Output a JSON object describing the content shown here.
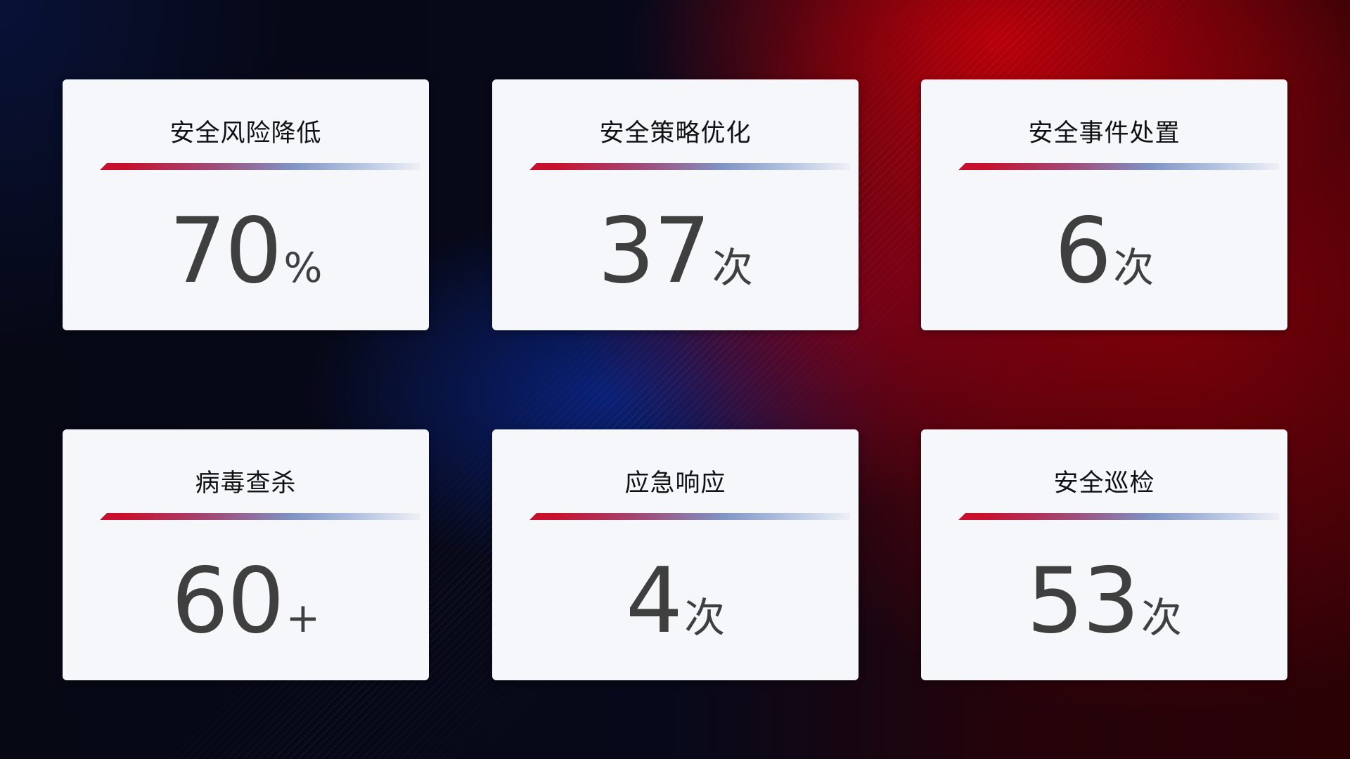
{
  "cards": [
    {
      "title": "安全风险降低",
      "value": "70",
      "unit": "%"
    },
    {
      "title": "安全策略优化",
      "value": "37",
      "unit": "次"
    },
    {
      "title": "安全事件处置",
      "value": "6",
      "unit": "次"
    },
    {
      "title": "病毒查杀",
      "value": "60",
      "unit": "+"
    },
    {
      "title": "应急响应",
      "value": "4",
      "unit": "次"
    },
    {
      "title": "安全巡检",
      "value": "53",
      "unit": "次"
    }
  ],
  "colors": {
    "accent_red": "#c8102e",
    "accent_blue": "#7f93c4",
    "card_bg": "#f6f7fb",
    "value_text": "#3f3f3f"
  }
}
